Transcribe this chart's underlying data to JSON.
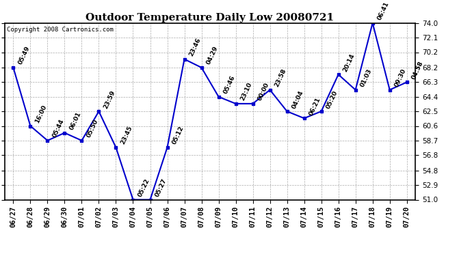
{
  "title": "Outdoor Temperature Daily Low 20080721",
  "copyright": "Copyright 2008 Cartronics.com",
  "dates": [
    "06/27",
    "06/28",
    "06/29",
    "06/30",
    "07/01",
    "07/02",
    "07/03",
    "07/04",
    "07/05",
    "07/06",
    "07/07",
    "07/08",
    "07/09",
    "07/10",
    "07/11",
    "07/12",
    "07/13",
    "07/14",
    "07/15",
    "07/16",
    "07/17",
    "07/18",
    "07/19",
    "07/20"
  ],
  "values": [
    68.2,
    60.6,
    58.7,
    59.7,
    58.7,
    62.5,
    57.8,
    51.0,
    51.0,
    57.8,
    69.3,
    68.2,
    64.4,
    63.5,
    63.5,
    65.3,
    62.5,
    61.6,
    62.5,
    67.3,
    65.3,
    74.0,
    65.3,
    66.3
  ],
  "labels": [
    "05:49",
    "16:00",
    "05:44",
    "06:01",
    "05:50",
    "23:59",
    "23:45",
    "05:22",
    "05:27",
    "05:12",
    "23:46",
    "04:29",
    "05:46",
    "23:10",
    "00:00",
    "23:58",
    "04:04",
    "06:21",
    "05:20",
    "20:14",
    "01:03",
    "06:41",
    "09:30",
    "04:58"
  ],
  "ylim": [
    51.0,
    74.0
  ],
  "yticks": [
    51.0,
    52.9,
    54.8,
    56.8,
    58.7,
    60.6,
    62.5,
    64.4,
    66.3,
    68.2,
    70.2,
    72.1,
    74.0
  ],
  "line_color": "#0000cc",
  "marker_color": "#0000cc",
  "bg_color": "#ffffff",
  "grid_color": "#aaaaaa",
  "title_fontsize": 11,
  "copyright_fontsize": 6.5,
  "label_fontsize": 6.5,
  "tick_fontsize": 7.5
}
